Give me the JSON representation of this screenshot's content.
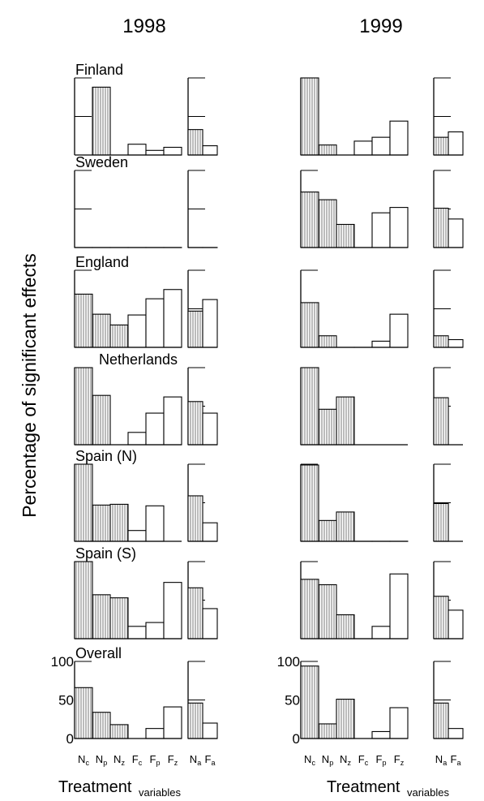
{
  "figure": {
    "years": [
      "1998",
      "1999"
    ],
    "ylabel": "Percentage of significant effects",
    "xlabel_main": "Treatment",
    "xlabel_sub": "variables",
    "yticks": [
      "0",
      "50",
      "100"
    ],
    "main_categories": [
      {
        "base": "N",
        "sub": "c"
      },
      {
        "base": "N",
        "sub": "p"
      },
      {
        "base": "N",
        "sub": "z"
      },
      {
        "base": "F",
        "sub": "c"
      },
      {
        "base": "F",
        "sub": "p"
      },
      {
        "base": "F",
        "sub": "z"
      }
    ],
    "small_categories": [
      {
        "base": "N",
        "sub": "a"
      },
      {
        "base": "F",
        "sub": "a"
      }
    ]
  },
  "chart_data": {
    "type": "bar",
    "ylim": [
      0,
      100
    ],
    "yticks": [
      0,
      50,
      100
    ],
    "fill_style": {
      "N": "vertical-hatch",
      "F": "open"
    },
    "categories": [
      "Nc",
      "Np",
      "Nz",
      "Fc",
      "Fp",
      "Fz"
    ],
    "small_categories": [
      "Na",
      "Fa"
    ],
    "panels": [
      {
        "country": "Finland",
        "1998": {
          "main": [
            null,
            88,
            null,
            14,
            6,
            10
          ],
          "small": [
            33,
            12
          ]
        },
        "1999": {
          "main": [
            100,
            13,
            null,
            18,
            23,
            44
          ],
          "small": [
            23,
            30
          ]
        }
      },
      {
        "country": "Sweden",
        "1998": {
          "main": [
            0,
            0,
            0,
            0,
            0,
            0
          ],
          "small": [
            0,
            0
          ]
        },
        "1999": {
          "main": [
            72,
            62,
            30,
            0,
            45,
            52
          ],
          "small": [
            51,
            37
          ]
        }
      },
      {
        "country": "England",
        "1998": {
          "main": [
            69,
            43,
            29,
            42,
            63,
            75
          ],
          "small": [
            47,
            62
          ]
        },
        "1999": {
          "main": [
            58,
            15,
            0,
            0,
            8,
            43
          ],
          "small": [
            15,
            10
          ]
        }
      },
      {
        "country": "Netherlands",
        "1998": {
          "main": [
            100,
            64,
            null,
            16,
            41,
            62
          ],
          "small": [
            56,
            41
          ]
        },
        "1999": {
          "main": [
            100,
            46,
            62,
            null,
            null,
            null
          ],
          "small": [
            61,
            null
          ]
        }
      },
      {
        "country": "Spain (N)",
        "1998": {
          "main": [
            100,
            47,
            48,
            14,
            46,
            null
          ],
          "small": [
            59,
            24
          ]
        },
        "1999": {
          "main": [
            99,
            27,
            38,
            0,
            0,
            0
          ],
          "small": [
            49,
            null
          ]
        }
      },
      {
        "country": "Spain (S)",
        "1998": {
          "main": [
            100,
            57,
            53,
            16,
            21,
            73
          ],
          "small": [
            66,
            39
          ]
        },
        "1999": {
          "main": [
            77,
            70,
            31,
            0,
            16,
            84
          ],
          "small": [
            55,
            37
          ]
        }
      },
      {
        "country": "Overall",
        "1998": {
          "main": [
            66,
            34,
            18,
            null,
            13,
            41
          ],
          "small": [
            46,
            20
          ]
        },
        "1999": {
          "main": [
            94,
            19,
            51,
            null,
            9,
            40
          ],
          "small": [
            46,
            13
          ]
        }
      }
    ]
  }
}
